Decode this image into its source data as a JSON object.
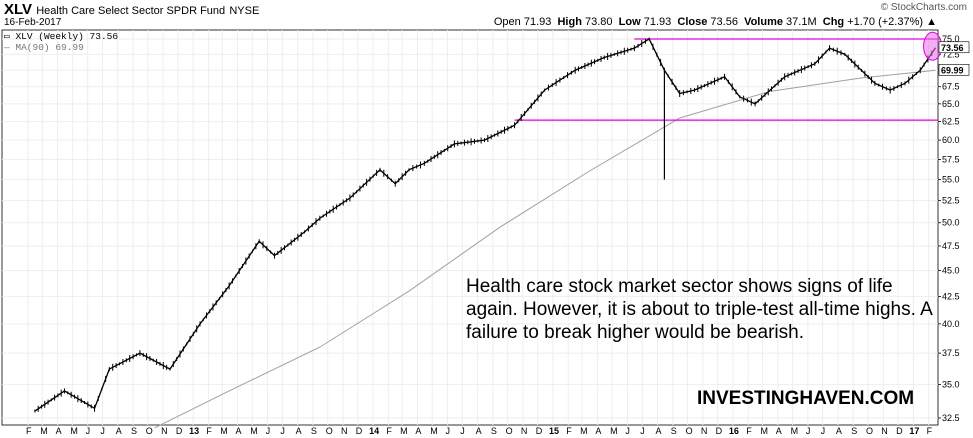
{
  "header": {
    "symbol": "XLV",
    "fund_name": "Health Care Select Sector SPDR Fund",
    "exchange": "NYSE",
    "date": "16-Feb-2017",
    "watermark": "© StockCharts.com",
    "open_label": "Open",
    "open": "71.93",
    "high_label": "High",
    "high": "73.80",
    "low_label": "Low",
    "low": "71.93",
    "close_label": "Close",
    "close": "73.56",
    "volume_label": "Volume",
    "volume": "37.1M",
    "change_label": "Chg",
    "change": "+1.70 (+2.37%)",
    "change_arrow": "▲"
  },
  "legend": {
    "price": "XLV (Weekly) 73.56",
    "ma": "MA(90) 69.99"
  },
  "annotation": {
    "text": "Health care stock market sector shows signs of life again. However, it is about to triple-test all-time highs. A failure to break higher would be bearish.",
    "brand": "INVESTINGHAVEN.COM"
  },
  "colors": {
    "price": "#000000",
    "ma": "#a0a0a0",
    "support_resistance": "#e000e0",
    "highlight": "#e870e8",
    "grid": "#eeeeee"
  },
  "chart_data": {
    "type": "line",
    "title": "Health Care Select Sector SPDR Fund",
    "xlabel": "",
    "ylabel": "",
    "y_scale": "log",
    "ylim": [
      32.0,
      76.5
    ],
    "x_range": [
      "2012-02",
      "2017-02"
    ],
    "grid": true,
    "y_ticks": [
      "32.5",
      "35.0",
      "37.5",
      "40.0",
      "42.5",
      "45.0",
      "47.5",
      "50.0",
      "52.5",
      "55.0",
      "57.5",
      "60.0",
      "62.5",
      "65.0",
      "67.5",
      "70.0",
      "72.5",
      "75.0"
    ],
    "x_tick_labels": [
      "F",
      "M",
      "A",
      "M",
      "J",
      "J",
      "A",
      "S",
      "O",
      "N",
      "D",
      "13",
      "F",
      "M",
      "A",
      "M",
      "J",
      "J",
      "A",
      "S",
      "O",
      "N",
      "D",
      "14",
      "F",
      "M",
      "A",
      "M",
      "J",
      "J",
      "A",
      "S",
      "O",
      "N",
      "D",
      "15",
      "F",
      "M",
      "A",
      "M",
      "J",
      "J",
      "A",
      "S",
      "O",
      "N",
      "D",
      "16",
      "F",
      "M",
      "A",
      "M",
      "J",
      "J",
      "A",
      "S",
      "O",
      "N",
      "D",
      "17",
      "F"
    ],
    "year_labels": [
      "13",
      "14",
      "15",
      "16",
      "17"
    ],
    "last_value_label": "73.56",
    "ma_value_label": "69.99",
    "series": [
      {
        "name": "XLV (Weekly)",
        "x": [
          "2012-02",
          "2012-04",
          "2012-06",
          "2012-07",
          "2012-09",
          "2012-11",
          "2013-01",
          "2013-03",
          "2013-05",
          "2013-06",
          "2013-08",
          "2013-09",
          "2013-11",
          "2014-01",
          "2014-02",
          "2014-03",
          "2014-04",
          "2014-06",
          "2014-08",
          "2014-10",
          "2014-12",
          "2015-01",
          "2015-02",
          "2015-04",
          "2015-06",
          "2015-07",
          "2015-08",
          "2015-09",
          "2015-10",
          "2015-12",
          "2016-01",
          "2016-02",
          "2016-04",
          "2016-06",
          "2016-07",
          "2016-08",
          "2016-10",
          "2016-11",
          "2016-12",
          "2017-01",
          "2017-02"
        ],
        "values": [
          33.0,
          34.5,
          33.2,
          36.2,
          37.5,
          36.2,
          40.0,
          43.5,
          48.0,
          46.5,
          49.0,
          50.5,
          52.8,
          56.2,
          54.5,
          56.2,
          57.0,
          59.5,
          60.0,
          62.0,
          67.0,
          68.5,
          70.0,
          72.0,
          73.5,
          75.0,
          70.0,
          66.5,
          67.0,
          69.0,
          66.0,
          65.0,
          69.0,
          71.0,
          73.5,
          72.5,
          68.0,
          67.0,
          68.0,
          70.0,
          73.56
        ]
      },
      {
        "name": "MA(90)",
        "x": [
          "2012-10",
          "2013-03",
          "2013-09",
          "2014-03",
          "2014-09",
          "2015-03",
          "2015-09",
          "2016-03",
          "2016-09",
          "2017-02"
        ],
        "values": [
          31.8,
          34.5,
          38.0,
          43.0,
          49.5,
          56.0,
          63.0,
          66.8,
          68.8,
          69.99
        ]
      }
    ],
    "reference_lines": [
      {
        "value": 75.0,
        "from": "2015-06",
        "to": "2017-02"
      },
      {
        "value": 62.7,
        "from": "2014-10",
        "to": "2017-02"
      }
    ],
    "annotations": [
      {
        "type": "intraday_low",
        "x": "2015-08",
        "value": 55.0
      }
    ]
  }
}
